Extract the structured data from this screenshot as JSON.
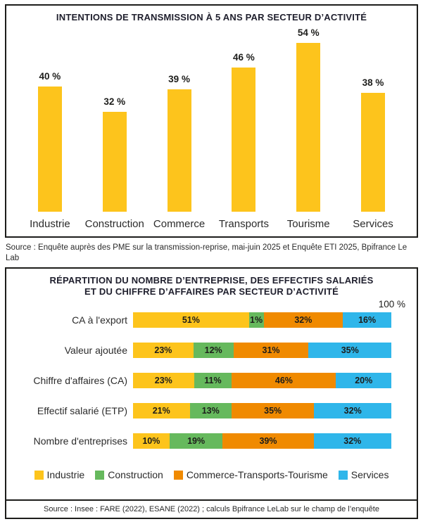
{
  "chart1": {
    "title": "INTENTIONS DE TRANSMISSION À 5 ANS PAR SECTEUR D’ACTIVITÉ",
    "source": "Source : Enquête auprès des PME sur la transmission-reprise, mai-juin 2025 et Enquête ETI 2025, Bpifrance Le Lab"
  },
  "chart2": {
    "title_line1": "RÉPARTITION DU NOMBRE D’ENTREPRISE, DES EFFECTIFS SALARIÉS",
    "title_line2": "ET DU CHIFFRE D’AFFAIRES PAR SECTEUR D’ACTIVITÉ",
    "axis_max_label": "100 %",
    "source": "Source : Insee : FARE (2022), ESANE (2022) ; calculs Bpifrance LeLab sur le champ de l’enquête"
  },
  "colors": {
    "industrie": "#FDC41C",
    "construction": "#66B95D",
    "commerce_transports_tourisme": "#F08A00",
    "services": "#2FB6EA",
    "border": "#1D1D1B"
  },
  "chart_data": [
    {
      "type": "bar",
      "title": "INTENTIONS DE TRANSMISSION À 5 ANS PAR SECTEUR D’ACTIVITÉ",
      "categories": [
        "Industrie",
        "Construction",
        "Commerce",
        "Transports",
        "Tourisme",
        "Services"
      ],
      "values": [
        40,
        32,
        39,
        46,
        54,
        38
      ],
      "value_suffix": " %",
      "bar_color": "#FDC41C",
      "ylim": [
        0,
        60
      ],
      "grid": false,
      "legend_position": "none",
      "source": "Source : Enquête auprès des PME sur la transmission-reprise, mai-juin 2025 et Enquête ETI 2025, Bpifrance Le Lab"
    },
    {
      "type": "bar",
      "orientation": "horizontal-stacked",
      "title": "RÉPARTITION DU NOMBRE D’ENTREPRISE, DES EFFECTIFS SALARIÉS ET DU CHIFFRE D’AFFAIRES PAR SECTEUR D’ACTIVITÉ",
      "categories": [
        "CA à l'export",
        "Valeur ajoutée",
        "Chiffre d'affaires (CA)",
        "Effectif salarié (ETP)",
        "Nombre d'entreprises"
      ],
      "series": [
        {
          "name": "Industrie",
          "color": "#FDC41C",
          "values": [
            51,
            23,
            23,
            21,
            10
          ]
        },
        {
          "name": "Construction",
          "color": "#66B95D",
          "values": [
            1,
            12,
            11,
            13,
            19
          ]
        },
        {
          "name": "Commerce-Transports-Tourisme",
          "color": "#F08A00",
          "values": [
            32,
            31,
            46,
            35,
            39
          ]
        },
        {
          "name": "Services",
          "color": "#2FB6EA",
          "values": [
            16,
            35,
            20,
            32,
            32
          ]
        }
      ],
      "value_suffix": "%",
      "xlim": [
        0,
        100
      ],
      "axis_max_label": "100 %",
      "grid": false,
      "legend_position": "bottom",
      "source": "Source : Insee : FARE (2022), ESANE (2022) ; calculs Bpifrance LeLab sur le champ de l’enquête"
    }
  ]
}
